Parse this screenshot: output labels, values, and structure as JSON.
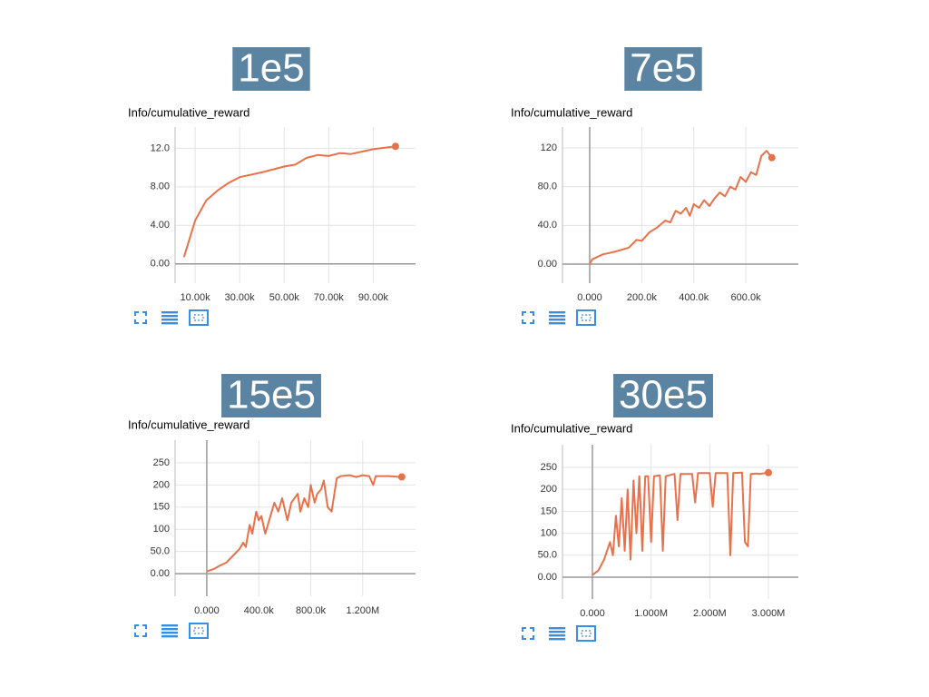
{
  "chart_data": [
    {
      "type": "line",
      "title": "1e5",
      "subtitle": "Info/cumulative_reward",
      "color": "#e8714a",
      "x": [
        5000,
        10000,
        15000,
        20000,
        25000,
        30000,
        40000,
        50000,
        55000,
        60000,
        65000,
        70000,
        75000,
        80000,
        90000,
        100000
      ],
      "values": [
        0.7,
        4.5,
        6.6,
        7.6,
        8.4,
        9.0,
        9.5,
        10.1,
        10.3,
        11.0,
        11.3,
        11.2,
        11.5,
        11.4,
        11.9,
        12.2
      ],
      "xlim": [
        1000,
        109000
      ],
      "ylim": [
        -2.0,
        14.2
      ],
      "xticks": [
        {
          "value": 10000,
          "label": "10.00k"
        },
        {
          "value": 30000,
          "label": "30.00k"
        },
        {
          "value": 50000,
          "label": "50.00k"
        },
        {
          "value": 70000,
          "label": "70.00k"
        },
        {
          "value": 90000,
          "label": "90.00k"
        }
      ],
      "yticks": [
        {
          "value": 0,
          "label": "0.00"
        },
        {
          "value": 4,
          "label": "4.00"
        },
        {
          "value": 8,
          "label": "8.00"
        },
        {
          "value": 12,
          "label": "12.0"
        }
      ],
      "grid": true
    },
    {
      "type": "line",
      "title": "7e5",
      "subtitle": "Info/cumulative_reward",
      "color": "#e8714a",
      "x": [
        0,
        10000,
        50000,
        100000,
        150000,
        180000,
        200000,
        230000,
        260000,
        290000,
        310000,
        330000,
        350000,
        370000,
        385000,
        400000,
        420000,
        440000,
        460000,
        480000,
        500000,
        520000,
        540000,
        560000,
        580000,
        600000,
        620000,
        640000,
        660000,
        680000,
        700000
      ],
      "values": [
        0,
        5,
        10,
        13,
        17,
        25,
        24,
        33,
        38,
        45,
        43,
        55,
        52,
        58,
        50,
        62,
        58,
        66,
        60,
        68,
        74,
        70,
        80,
        77,
        90,
        85,
        95,
        92,
        112,
        117,
        110
      ],
      "xlim": [
        -104700,
        802000
      ],
      "ylim": [
        -19.7,
        141.6
      ],
      "xticks": [
        {
          "value": 0,
          "label": "0.000"
        },
        {
          "value": 200000,
          "label": "200.0k"
        },
        {
          "value": 400000,
          "label": "400.0k"
        },
        {
          "value": 600000,
          "label": "600.0k"
        }
      ],
      "yticks": [
        {
          "value": 0,
          "label": "0.00"
        },
        {
          "value": 40,
          "label": "40.0"
        },
        {
          "value": 80,
          "label": "80.0"
        },
        120
      ],
      "grid": true
    },
    {
      "type": "line",
      "title": "15e5",
      "subtitle": "Info/cumulative_reward",
      "color": "#e8714a",
      "x": [
        0,
        50000,
        100000,
        150000,
        200000,
        250000,
        280000,
        300000,
        330000,
        350000,
        380000,
        400000,
        420000,
        450000,
        480000,
        520000,
        550000,
        580000,
        620000,
        650000,
        700000,
        720000,
        750000,
        780000,
        800000,
        830000,
        850000,
        880000,
        900000,
        930000,
        960000,
        1000000,
        1030000,
        1100000,
        1150000,
        1200000,
        1250000,
        1280000,
        1300000,
        1400000,
        1500000
      ],
      "values": [
        5,
        10,
        18,
        25,
        40,
        55,
        70,
        60,
        110,
        90,
        140,
        120,
        130,
        90,
        120,
        160,
        140,
        170,
        120,
        160,
        180,
        140,
        170,
        150,
        200,
        160,
        180,
        190,
        210,
        150,
        140,
        215,
        220,
        222,
        218,
        222,
        220,
        200,
        220,
        220,
        218
      ],
      "xlim": [
        -244000,
        1606000
      ],
      "ylim": [
        -51,
        301
      ],
      "xticks": [
        {
          "value": 0,
          "label": "0.000"
        },
        {
          "value": 400000,
          "label": "400.0k"
        },
        {
          "value": 800000,
          "label": "800.0k"
        },
        {
          "value": 1200000,
          "label": "1.200M"
        }
      ],
      "yticks": [
        {
          "value": 0,
          "label": "0.00"
        },
        {
          "value": 50,
          "label": "50.0"
        },
        100,
        150,
        200,
        250
      ],
      "grid": true
    },
    {
      "type": "line",
      "title": "30e5",
      "subtitle": "Info/cumulative_reward",
      "color": "#e8714a",
      "x": [
        0,
        100000,
        200000,
        300000,
        350000,
        400000,
        450000,
        500000,
        550000,
        600000,
        650000,
        700000,
        750000,
        800000,
        850000,
        900000,
        950000,
        1000000,
        1050000,
        1150000,
        1200000,
        1250000,
        1400000,
        1450000,
        1500000,
        1700000,
        1750000,
        1800000,
        2000000,
        2050000,
        2100000,
        2300000,
        2350000,
        2400000,
        2550000,
        2600000,
        2650000,
        2700000,
        2800000,
        2850000,
        3000000
      ],
      "values": [
        5,
        15,
        40,
        80,
        50,
        140,
        70,
        180,
        60,
        200,
        40,
        220,
        100,
        230,
        60,
        230,
        230,
        80,
        230,
        232,
        60,
        230,
        235,
        130,
        235,
        235,
        170,
        237,
        237,
        160,
        237,
        237,
        50,
        237,
        238,
        80,
        70,
        235,
        236,
        235,
        238
      ],
      "xlim": [
        -510000,
        3510000
      ],
      "ylim": [
        -49.6,
        301.6
      ],
      "xticks": [
        {
          "value": 0,
          "label": "0.000"
        },
        {
          "value": 1000000,
          "label": "1.000M"
        },
        {
          "value": 2000000,
          "label": "2.000M"
        },
        {
          "value": 3000000,
          "label": "3.000M"
        }
      ],
      "yticks": [
        {
          "value": 0,
          "label": "0.00"
        },
        {
          "value": 50,
          "label": "50.0"
        },
        100,
        150,
        200,
        250
      ],
      "grid": true
    }
  ]
}
